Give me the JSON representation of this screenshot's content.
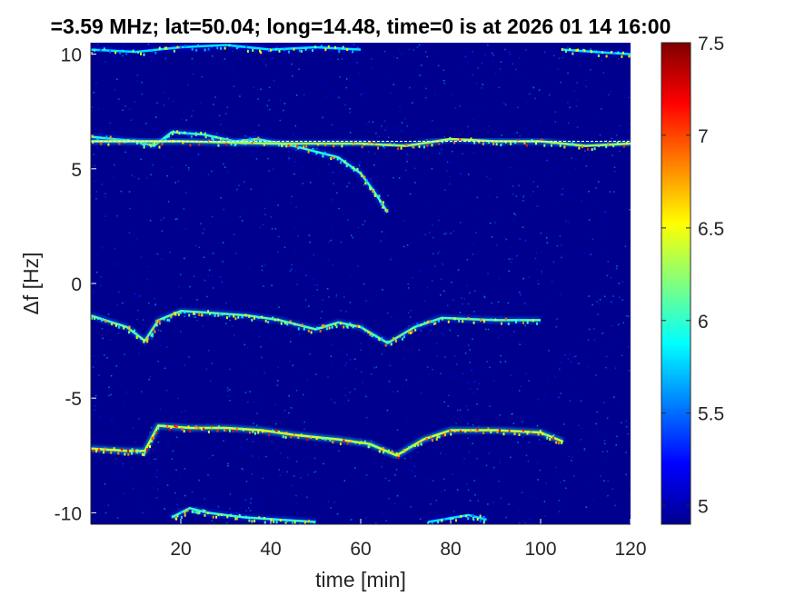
{
  "chart_data": {
    "type": "heatmap",
    "title": "=3.59 MHz;  lat=50.04; long=14.48, time=0 is at 2026 01 14 16:00",
    "xlabel": "time [min]",
    "ylabel": "Δf [Hz]",
    "xlim": [
      0,
      120
    ],
    "ylim": [
      -10.5,
      10.5
    ],
    "x_ticks": [
      20,
      40,
      60,
      80,
      100,
      120
    ],
    "y_ticks": [
      -10,
      -5,
      0,
      5,
      10
    ],
    "colormap": "jet",
    "background_color": "#00008f",
    "colorbar": {
      "range": [
        4.9,
        7.5
      ],
      "ticks": [
        5,
        5.5,
        6,
        6.5,
        7,
        7.5
      ]
    },
    "reference_line": {
      "y": 6.2,
      "style": "dashed",
      "color": "#ffffff"
    },
    "traces": [
      {
        "name": "",
        "points": [
          [
            0,
            6.4
          ],
          [
            10,
            6.2
          ],
          [
            14,
            6.0
          ],
          [
            18,
            6.6
          ],
          [
            25,
            6.5
          ],
          [
            32,
            6.2
          ],
          [
            37,
            6.3
          ],
          [
            45,
            6.0
          ],
          [
            55,
            5.5
          ],
          [
            60,
            4.8
          ],
          [
            63,
            4.0
          ],
          [
            66,
            3.1
          ]
        ],
        "intensity": 6.0
      },
      {
        "name": "",
        "points": [
          [
            0,
            6.2
          ],
          [
            20,
            6.2
          ],
          [
            40,
            6.1
          ],
          [
            60,
            6.1
          ],
          [
            70,
            6.0
          ],
          [
            80,
            6.3
          ],
          [
            90,
            6.2
          ],
          [
            100,
            6.2
          ],
          [
            110,
            6.0
          ],
          [
            120,
            6.1
          ]
        ],
        "intensity": 6.3
      },
      {
        "name": "",
        "points": [
          [
            0,
            -1.4
          ],
          [
            8,
            -1.9
          ],
          [
            12,
            -2.5
          ],
          [
            15,
            -1.6
          ],
          [
            20,
            -1.2
          ],
          [
            28,
            -1.3
          ],
          [
            35,
            -1.4
          ],
          [
            42,
            -1.6
          ],
          [
            50,
            -2.0
          ],
          [
            55,
            -1.7
          ],
          [
            60,
            -1.9
          ],
          [
            66,
            -2.6
          ],
          [
            72,
            -1.9
          ],
          [
            78,
            -1.5
          ],
          [
            90,
            -1.6
          ],
          [
            100,
            -1.6
          ]
        ],
        "intensity": 6.1
      },
      {
        "name": "",
        "points": [
          [
            0,
            -7.2
          ],
          [
            8,
            -7.3
          ],
          [
            12,
            -7.3
          ],
          [
            15,
            -6.2
          ],
          [
            22,
            -6.3
          ],
          [
            30,
            -6.3
          ],
          [
            38,
            -6.4
          ],
          [
            45,
            -6.6
          ],
          [
            55,
            -6.8
          ],
          [
            62,
            -7.0
          ],
          [
            68,
            -7.5
          ],
          [
            74,
            -6.8
          ],
          [
            80,
            -6.4
          ],
          [
            90,
            -6.4
          ],
          [
            100,
            -6.5
          ],
          [
            105,
            -6.9
          ]
        ],
        "intensity": 6.4
      },
      {
        "name": "",
        "points": [
          [
            18,
            -10.2
          ],
          [
            22,
            -9.8
          ],
          [
            26,
            -10.0
          ],
          [
            34,
            -10.2
          ],
          [
            42,
            -10.3
          ],
          [
            50,
            -10.4
          ]
        ],
        "intensity": 6.0
      },
      {
        "name": "",
        "points": [
          [
            75,
            -10.4
          ],
          [
            84,
            -10.1
          ],
          [
            88,
            -10.3
          ]
        ],
        "intensity": 5.8
      },
      {
        "name": "",
        "points": [
          [
            0,
            10.2
          ],
          [
            10,
            10.1
          ],
          [
            20,
            10.3
          ],
          [
            30,
            10.4
          ],
          [
            40,
            10.2
          ],
          [
            50,
            10.3
          ],
          [
            60,
            10.2
          ]
        ],
        "intensity": 5.8
      },
      {
        "name": "",
        "points": [
          [
            105,
            10.2
          ],
          [
            112,
            10.1
          ],
          [
            120,
            10.0
          ]
        ],
        "intensity": 5.8
      }
    ]
  }
}
